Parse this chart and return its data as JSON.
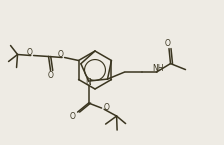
{
  "bg_color": "#eeebe4",
  "line_color": "#3a3520",
  "lw": 1.1,
  "figsize": [
    2.24,
    1.45
  ],
  "dpi": 100,
  "xlim": [
    0,
    22.4
  ],
  "ylim": [
    0,
    14.5
  ]
}
